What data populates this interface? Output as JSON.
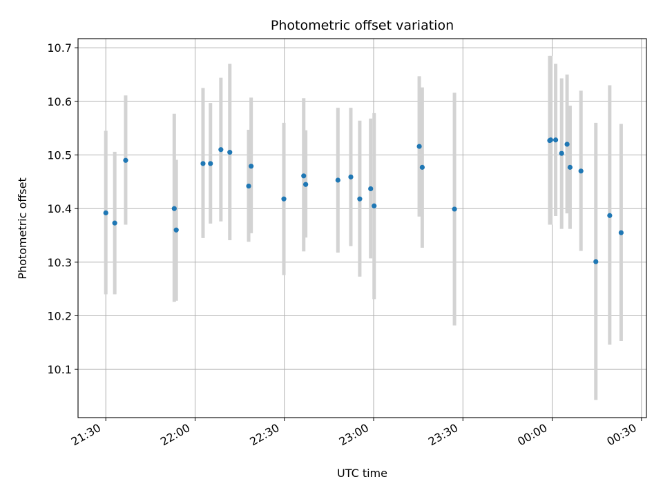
{
  "chart_data": {
    "type": "scatter",
    "title": "Photometric offset variation",
    "xlabel": "UTC time",
    "ylabel": "Photometric offset",
    "grid": true,
    "xlim": [
      "21:20:40",
      "00:31:40"
    ],
    "ylim": [
      10.01,
      10.717
    ],
    "x_ticks": [
      "21:30",
      "22:00",
      "22:30",
      "23:00",
      "23:30",
      "00:00",
      "00:30"
    ],
    "y_ticks": [
      "10.1",
      "10.2",
      "10.3",
      "10.4",
      "10.5",
      "10.6",
      "10.7"
    ],
    "y_tick_values": [
      10.1,
      10.2,
      10.3,
      10.4,
      10.5,
      10.6,
      10.7
    ],
    "colors": {
      "points": "#1f77b4",
      "error_bars": "#d3d3d3",
      "grid": "#b0b0b0"
    },
    "series": [
      {
        "points": [
          {
            "x": "21:30:00",
            "y": 10.392,
            "ylow": 10.24,
            "yhigh": 10.545
          },
          {
            "x": "21:33:00",
            "y": 10.373,
            "ylow": 10.24,
            "yhigh": 10.506
          },
          {
            "x": "21:36:40",
            "y": 10.49,
            "ylow": 10.37,
            "yhigh": 10.611
          },
          {
            "x": "21:53:00",
            "y": 10.4,
            "ylow": 10.226,
            "yhigh": 10.577
          },
          {
            "x": "21:53:40",
            "y": 10.36,
            "ylow": 10.228,
            "yhigh": 10.491
          },
          {
            "x": "22:02:40",
            "y": 10.484,
            "ylow": 10.345,
            "yhigh": 10.625
          },
          {
            "x": "22:05:10",
            "y": 10.484,
            "ylow": 10.372,
            "yhigh": 10.597
          },
          {
            "x": "22:08:40",
            "y": 10.51,
            "ylow": 10.376,
            "yhigh": 10.644
          },
          {
            "x": "22:11:40",
            "y": 10.505,
            "ylow": 10.341,
            "yhigh": 10.67
          },
          {
            "x": "22:18:00",
            "y": 10.442,
            "ylow": 10.338,
            "yhigh": 10.547
          },
          {
            "x": "22:18:50",
            "y": 10.479,
            "ylow": 10.354,
            "yhigh": 10.607
          },
          {
            "x": "22:29:50",
            "y": 10.418,
            "ylow": 10.276,
            "yhigh": 10.56
          },
          {
            "x": "22:36:30",
            "y": 10.461,
            "ylow": 10.32,
            "yhigh": 10.606
          },
          {
            "x": "22:37:10",
            "y": 10.445,
            "ylow": 10.346,
            "yhigh": 10.546
          },
          {
            "x": "22:48:00",
            "y": 10.453,
            "ylow": 10.318,
            "yhigh": 10.588
          },
          {
            "x": "22:52:20",
            "y": 10.459,
            "ylow": 10.33,
            "yhigh": 10.588
          },
          {
            "x": "22:55:20",
            "y": 10.418,
            "ylow": 10.273,
            "yhigh": 10.564
          },
          {
            "x": "22:59:00",
            "y": 10.437,
            "ylow": 10.307,
            "yhigh": 10.568
          },
          {
            "x": "23:00:10",
            "y": 10.405,
            "ylow": 10.231,
            "yhigh": 10.578
          },
          {
            "x": "23:15:20",
            "y": 10.516,
            "ylow": 10.385,
            "yhigh": 10.647
          },
          {
            "x": "23:16:20",
            "y": 10.477,
            "ylow": 10.327,
            "yhigh": 10.626
          },
          {
            "x": "23:27:10",
            "y": 10.399,
            "ylow": 10.182,
            "yhigh": 10.616
          },
          {
            "x": "23:59:10",
            "y": 10.527,
            "ylow": 10.37,
            "yhigh": 10.685
          },
          {
            "x": "23:59:30",
            "y": 10.528,
            "ylow": 10.37,
            "yhigh": 10.685
          },
          {
            "x": "00:01:10",
            "y": 10.528,
            "ylow": 10.386,
            "yhigh": 10.67
          },
          {
            "x": "00:03:10",
            "y": 10.503,
            "ylow": 10.362,
            "yhigh": 10.643
          },
          {
            "x": "00:05:00",
            "y": 10.52,
            "ylow": 10.391,
            "yhigh": 10.65
          },
          {
            "x": "00:06:00",
            "y": 10.477,
            "ylow": 10.362,
            "yhigh": 10.592
          },
          {
            "x": "00:09:40",
            "y": 10.47,
            "ylow": 10.321,
            "yhigh": 10.62
          },
          {
            "x": "00:14:40",
            "y": 10.301,
            "ylow": 10.043,
            "yhigh": 10.56
          },
          {
            "x": "00:19:20",
            "y": 10.387,
            "ylow": 10.146,
            "yhigh": 10.63
          },
          {
            "x": "00:23:10",
            "y": 10.355,
            "ylow": 10.153,
            "yhigh": 10.558
          }
        ]
      }
    ]
  }
}
